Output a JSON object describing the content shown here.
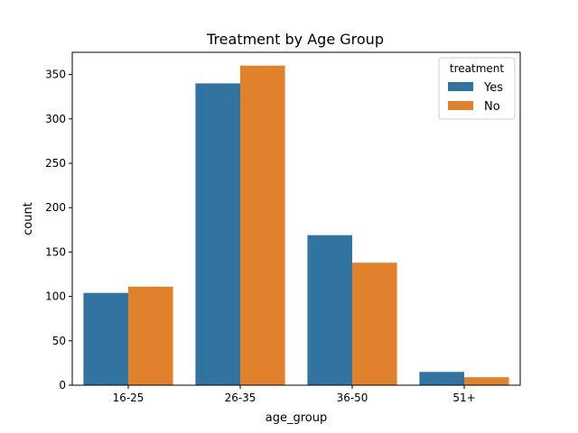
{
  "chart_data": {
    "type": "bar",
    "title": "Treatment by Age Group",
    "xlabel": "age_group",
    "ylabel": "count",
    "categories": [
      "16-25",
      "26-35",
      "36-50",
      "51+"
    ],
    "series": [
      {
        "name": "Yes",
        "color": "#3274a1",
        "values": [
          104,
          340,
          169,
          15
        ]
      },
      {
        "name": "No",
        "color": "#e1812c",
        "values": [
          111,
          360,
          138,
          9
        ]
      }
    ],
    "ylim": [
      0,
      375
    ],
    "yticks": [
      0,
      50,
      100,
      150,
      200,
      250,
      300,
      350
    ],
    "grid": false,
    "legend": {
      "title": "treatment",
      "placement": "top-right"
    }
  }
}
